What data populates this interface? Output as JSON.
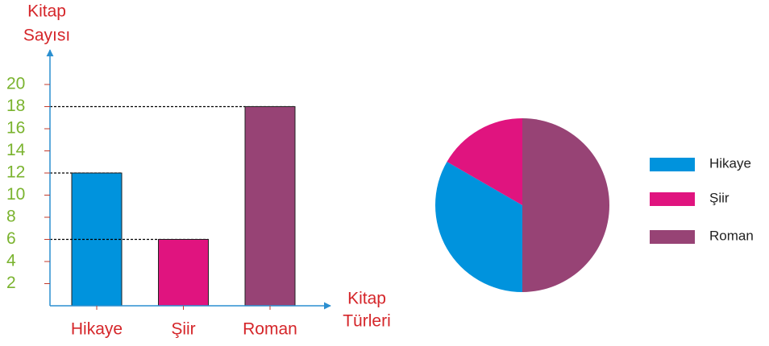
{
  "chart_data": [
    {
      "type": "bar",
      "y_label_lines": [
        "Kitap",
        "Sayısı"
      ],
      "x_label_lines": [
        "Kitap",
        "Türleri"
      ],
      "categories": [
        "Hikaye",
        "Şiir",
        "Roman"
      ],
      "values": [
        12,
        6,
        18
      ],
      "colors": [
        "#0093dd",
        "#e0147f",
        "#974375"
      ],
      "ylim": [
        0,
        20
      ],
      "yticks": [
        2,
        4,
        6,
        8,
        10,
        12,
        14,
        16,
        18,
        20
      ]
    },
    {
      "type": "pie",
      "categories": [
        "Hikaye",
        "Şiir",
        "Roman"
      ],
      "values": [
        12,
        6,
        18
      ],
      "colors": [
        "#0093dd",
        "#e0147f",
        "#974375"
      ],
      "legend": "right"
    }
  ]
}
